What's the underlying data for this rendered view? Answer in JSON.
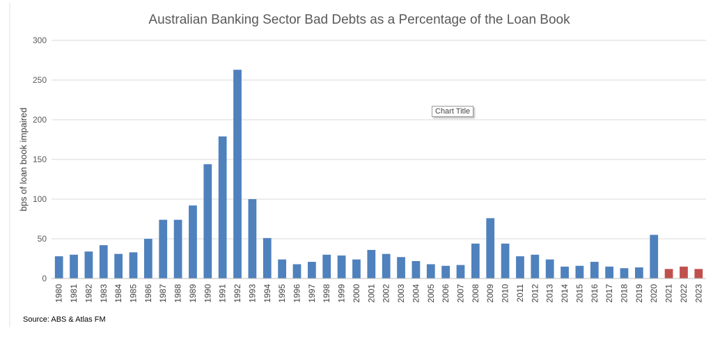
{
  "chart_data": {
    "type": "bar",
    "title": "Australian Banking Sector Bad Debts as a Percentage of the Loan Book",
    "xlabel": "",
    "ylabel": "bps of loan book impaired",
    "ylim": [
      0,
      300
    ],
    "yticks": [
      0,
      50,
      100,
      150,
      200,
      250,
      300
    ],
    "grid": true,
    "categories": [
      "1980",
      "1981",
      "1982",
      "1983",
      "1984",
      "1985",
      "1986",
      "1987",
      "1988",
      "1989",
      "1990",
      "1991",
      "1992",
      "1993",
      "1994",
      "1995",
      "1996",
      "1997",
      "1998",
      "1999",
      "2000",
      "2001",
      "2002",
      "2003",
      "2004",
      "2005",
      "2006",
      "2007",
      "2008",
      "2009",
      "2010",
      "2011",
      "2012",
      "2013",
      "2014",
      "2015",
      "2016",
      "2017",
      "2018",
      "2019",
      "2020",
      "2021",
      "2022",
      "2023"
    ],
    "values": [
      28,
      30,
      34,
      42,
      31,
      33,
      50,
      74,
      74,
      92,
      144,
      179,
      263,
      100,
      51,
      24,
      18,
      21,
      30,
      29,
      24,
      36,
      31,
      27,
      22,
      18,
      16,
      17,
      44,
      76,
      44,
      28,
      30,
      24,
      15,
      16,
      21,
      15,
      13,
      14,
      55,
      12,
      15,
      12
    ],
    "bar_colors": {
      "actual": "#4f81bd",
      "forecast": "#c0504d"
    },
    "forecast_categories": [
      "2021",
      "2022",
      "2023"
    ],
    "source": "Source: ABS & Atlas FM",
    "tooltip": "Chart Title"
  }
}
